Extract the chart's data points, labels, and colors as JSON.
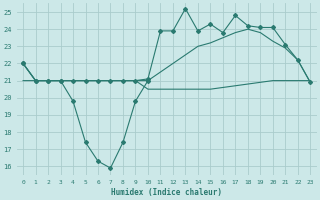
{
  "xlabel": "Humidex (Indice chaleur)",
  "bg_color": "#cce8e8",
  "grid_color": "#aacccc",
  "line_color": "#2a7a70",
  "xlim": [
    -0.5,
    23.5
  ],
  "ylim": [
    15.5,
    25.5
  ],
  "xticks": [
    0,
    1,
    2,
    3,
    4,
    5,
    6,
    7,
    8,
    9,
    10,
    11,
    12,
    13,
    14,
    15,
    16,
    17,
    18,
    19,
    20,
    21,
    22,
    23
  ],
  "yticks": [
    16,
    17,
    18,
    19,
    20,
    21,
    22,
    23,
    24,
    25
  ],
  "curve_jagged_low_x": [
    0,
    1,
    2,
    3,
    4,
    5,
    6,
    7,
    8,
    9,
    10
  ],
  "curve_jagged_low_y": [
    22,
    21,
    21,
    21,
    19.8,
    17.4,
    16.3,
    15.9,
    17.4,
    19.8,
    21.0
  ],
  "curve_top_jagged_x": [
    0,
    1,
    2,
    3,
    4,
    5,
    6,
    7,
    8,
    9,
    10,
    11,
    12,
    13,
    14,
    15,
    16,
    17,
    18,
    19,
    20,
    21,
    22,
    23
  ],
  "curve_top_jagged_y": [
    22,
    21,
    21,
    21,
    21,
    21,
    21,
    21,
    21,
    21,
    21.1,
    23.9,
    23.9,
    25.2,
    23.9,
    24.3,
    23.8,
    24.8,
    24.2,
    24.1,
    24.1,
    23.1,
    22.2,
    20.9
  ],
  "curve_mid_x": [
    0,
    1,
    2,
    3,
    4,
    5,
    6,
    7,
    8,
    9,
    10,
    11,
    12,
    13,
    14,
    15,
    16,
    17,
    18,
    19,
    20,
    21,
    22,
    23
  ],
  "curve_mid_y": [
    22,
    21,
    21,
    21,
    21,
    21,
    21,
    21,
    21,
    21,
    21.0,
    21.5,
    22.0,
    22.5,
    23.0,
    23.2,
    23.5,
    23.8,
    24.0,
    23.8,
    23.3,
    22.9,
    22.2,
    20.9
  ],
  "curve_flat_x": [
    0,
    1,
    2,
    3,
    4,
    5,
    6,
    7,
    8,
    9,
    10,
    11,
    12,
    13,
    14,
    15,
    16,
    17,
    18,
    19,
    20,
    21,
    22,
    23
  ],
  "curve_flat_y": [
    21,
    21,
    21,
    21,
    21,
    21,
    21,
    21,
    21,
    21,
    20.5,
    20.5,
    20.5,
    20.5,
    20.5,
    20.5,
    20.6,
    20.7,
    20.8,
    20.9,
    21.0,
    21.0,
    21.0,
    21.0
  ]
}
